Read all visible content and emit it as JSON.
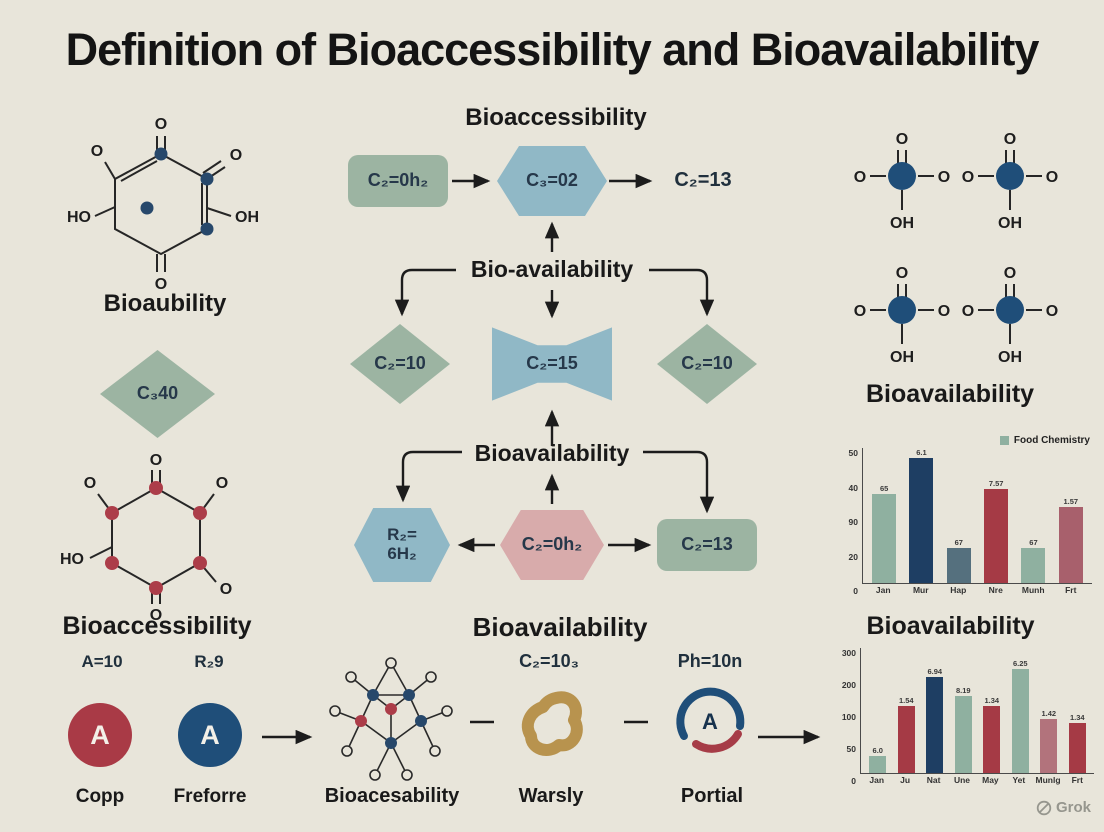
{
  "page": {
    "title": "Definition of Bioaccessibility and Bioavailability",
    "watermark": "Grok",
    "background": "#e8e5da"
  },
  "left": {
    "molecule_top": {
      "caption": "Bioaubility",
      "labels": {
        "top": "O",
        "top_left": "O",
        "top_right": "O",
        "left": "HO",
        "right": "OH",
        "bottom": "O"
      }
    },
    "diamond_label": "C₃40",
    "molecule_bottom": {
      "caption": "Bioaccessibility",
      "labels": {
        "top": "O",
        "top_left": "O",
        "top_right": "O",
        "left": "HO",
        "bottom_right": "O",
        "bottom": "O"
      }
    },
    "entity_left": {
      "formula": "A=10",
      "symbol": "A",
      "caption": "Copp"
    },
    "entity_right": {
      "formula": "R₂9",
      "symbol": "A",
      "caption": "Freforre"
    }
  },
  "flow": {
    "heading_top": "Bioaccessibility",
    "row1_box": "C₂=0h₂",
    "row1_hex": "C₃=02",
    "row1_end": "C₂=13",
    "label_bioavail_1": "Bio-availability",
    "row2_diamond_left": "C₂=10",
    "row2_bowtie": "C₂=15",
    "row2_diamond_right": "C₂=10",
    "label_bioavail_2": "Bioavailability",
    "row3_hex_left_1": "R₂=",
    "row3_hex_left_2": "6H₂",
    "row3_hex_center": "C₂=0h₂",
    "row3_box_right": "C₂=13",
    "heading_bottom": "Bioavailability",
    "formula_left": "C₂=10₃",
    "formula_right": "Ph=10n",
    "caption_network": "Bioacesability",
    "caption_blob": "Warsly",
    "caption_gauge": "Portial",
    "gauge_symbol": "A"
  },
  "right": {
    "molecule_labels": {
      "top": "O",
      "left": "O",
      "right": "O",
      "bottom": "OH"
    },
    "caption_top": "Bioavailability",
    "caption_mid": "Bioavailability"
  },
  "chart_data": [
    {
      "type": "bar",
      "title": "",
      "legend": [
        "Food Chemistry"
      ],
      "legend_color": "#8fb0a0",
      "legend_position": "top-right",
      "categories": [
        "Jan",
        "Mur",
        "Hap",
        "Nre",
        "Munh",
        "Frt"
      ],
      "values": [
        33,
        47,
        13,
        35,
        13,
        28
      ],
      "bar_labels": [
        "65",
        "6.1",
        "67",
        "7.57",
        "67",
        "1.57"
      ],
      "bar_colors": [
        "#8fb0a0",
        "#1e3e63",
        "#55707e",
        "#a53a45",
        "#8fb0a0",
        "#a8606c"
      ],
      "y_ticks": [
        "50",
        "40",
        "90",
        "20",
        "0"
      ],
      "ylim": [
        0,
        50
      ],
      "xlabel": "",
      "ylabel": ""
    },
    {
      "type": "bar",
      "title": "",
      "categories": [
        "Jan",
        "Ju",
        "Nat",
        "Une",
        "May",
        "Yet",
        "Munlg",
        "Frt"
      ],
      "values": [
        40,
        160,
        230,
        185,
        160,
        250,
        130,
        120
      ],
      "bar_labels": [
        "6.0",
        "1.54",
        "6.94",
        "8.19",
        "1.34",
        "6.25",
        "1.42",
        "1.34"
      ],
      "bar_colors": [
        "#8fb0a0",
        "#a53a45",
        "#1e3e63",
        "#8fb0a0",
        "#a53a45",
        "#8fb0a0",
        "#b2737c",
        "#a53a45"
      ],
      "y_ticks": [
        "300",
        "200",
        "100",
        "50",
        "0"
      ],
      "ylim": [
        0,
        300
      ],
      "xlabel": "",
      "ylabel": ""
    }
  ]
}
